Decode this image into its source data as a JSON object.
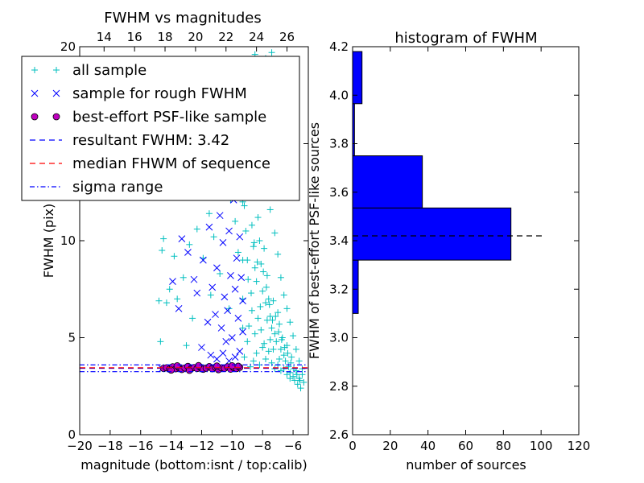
{
  "chart_data": [
    {
      "id": "scatter",
      "type": "scatter",
      "title": "FWHM vs magnitudes",
      "xlabel": "magnitude (bottom:isnt / top:calib)",
      "ylabel": "FWHM (pix)",
      "xlim": [
        -20,
        -5
      ],
      "ylim": [
        0,
        20
      ],
      "x_ticks": [
        -20,
        -18,
        -16,
        -14,
        -12,
        -10,
        -8,
        -6
      ],
      "x_tick_labels": [
        "−20",
        "−18",
        "−16",
        "−14",
        "−12",
        "−10",
        "−8",
        "−6"
      ],
      "y_ticks": [
        0,
        5,
        10,
        15,
        20
      ],
      "y_tick_labels": [
        "0",
        "5",
        "10",
        "15",
        "20"
      ],
      "top_ticks": [
        14,
        16,
        18,
        20,
        22,
        24,
        26
      ],
      "top_tick_labels": [
        "14",
        "16",
        "18",
        "20",
        "22",
        "24",
        "26"
      ],
      "top_offset": 32.4,
      "grid": false,
      "legend_placement": "upper-left",
      "series": [
        {
          "name": "all sample",
          "marker": "+",
          "color": "#00bfbf",
          "points": [
            [
              -14.6,
              9.5
            ],
            [
              -14.5,
              10.1
            ],
            [
              -14.3,
              6.8
            ],
            [
              -14.1,
              7.5
            ],
            [
              -13.8,
              9.2
            ],
            [
              -13.6,
              7.0
            ],
            [
              -13.2,
              8.1
            ],
            [
              -12.8,
              9.8
            ],
            [
              -12.3,
              10.6
            ],
            [
              -12.6,
              6.0
            ],
            [
              -13.0,
              4.6
            ],
            [
              -14.7,
              4.8
            ],
            [
              -14.8,
              6.9
            ],
            [
              -11.9,
              9.1
            ],
            [
              -11.5,
              11.4
            ],
            [
              -11.2,
              10.2
            ],
            [
              -11.7,
              12.6
            ],
            [
              -10.9,
              14.3
            ],
            [
              -10.6,
              13.2
            ],
            [
              -10.3,
              15.4
            ],
            [
              -10.1,
              12.1
            ],
            [
              -10.8,
              8.3
            ],
            [
              -11.4,
              7.2
            ],
            [
              -10.2,
              6.5
            ],
            [
              -9.9,
              16.4
            ],
            [
              -9.7,
              17.0
            ],
            [
              -9.5,
              15.8
            ],
            [
              -9.8,
              11.0
            ],
            [
              -9.6,
              9.4
            ],
            [
              -9.4,
              13.0
            ],
            [
              -9.2,
              11.8
            ],
            [
              -9.1,
              10.5
            ],
            [
              -9.0,
              9.0
            ],
            [
              -8.9,
              12.4
            ],
            [
              -8.8,
              14.6
            ],
            [
              -8.7,
              10.8
            ],
            [
              -8.6,
              9.7
            ],
            [
              -8.5,
              8.6
            ],
            [
              -8.4,
              7.9
            ],
            [
              -8.3,
              11.2
            ],
            [
              -8.2,
              10.0
            ],
            [
              -8.1,
              8.8
            ],
            [
              -8.0,
              7.4
            ],
            [
              -7.9,
              9.6
            ],
            [
              -7.8,
              6.8
            ],
            [
              -7.7,
              8.2
            ],
            [
              -7.6,
              7.0
            ],
            [
              -7.5,
              6.1
            ],
            [
              -7.4,
              5.5
            ],
            [
              -7.3,
              6.9
            ],
            [
              -7.2,
              5.2
            ],
            [
              -7.1,
              4.8
            ],
            [
              -7.0,
              6.3
            ],
            [
              -6.9,
              5.7
            ],
            [
              -6.8,
              4.4
            ],
            [
              -6.7,
              5.0
            ],
            [
              -6.6,
              4.1
            ],
            [
              -6.5,
              3.8
            ],
            [
              -6.4,
              4.6
            ],
            [
              -6.3,
              3.5
            ],
            [
              -6.2,
              3.2
            ],
            [
              -6.1,
              4.0
            ],
            [
              -6.0,
              3.0
            ],
            [
              -5.9,
              2.8
            ],
            [
              -5.8,
              3.3
            ],
            [
              -5.7,
              2.6
            ],
            [
              -5.6,
              2.9
            ],
            [
              -5.5,
              2.4
            ],
            [
              -5.4,
              3.1
            ],
            [
              -5.3,
              2.7
            ],
            [
              -8.8,
              3.5
            ],
            [
              -8.6,
              3.8
            ],
            [
              -8.4,
              4.2
            ],
            [
              -8.2,
              3.6
            ],
            [
              -8.0,
              4.5
            ],
            [
              -7.8,
              3.9
            ],
            [
              -7.6,
              4.3
            ],
            [
              -7.4,
              3.7
            ],
            [
              -7.2,
              3.4
            ],
            [
              -7.0,
              3.6
            ],
            [
              -6.8,
              3.3
            ],
            [
              -9.2,
              4.0
            ],
            [
              -9.0,
              4.8
            ],
            [
              -8.9,
              5.6
            ],
            [
              -8.7,
              6.4
            ],
            [
              -8.5,
              5.2
            ],
            [
              -8.3,
              6.0
            ],
            [
              -8.1,
              5.4
            ],
            [
              -7.9,
              4.7
            ],
            [
              -7.7,
              5.9
            ],
            [
              -7.5,
              4.9
            ],
            [
              -7.3,
              4.4
            ],
            [
              -6.9,
              3.9
            ],
            [
              -6.6,
              3.4
            ],
            [
              -6.4,
              3.1
            ],
            [
              -6.2,
              2.9
            ],
            [
              -8.5,
              19.6
            ],
            [
              -7.8,
              19.4
            ],
            [
              -7.4,
              19.7
            ],
            [
              -9.3,
              18.2
            ],
            [
              -9.0,
              17.5
            ],
            [
              -8.9,
              16.8
            ],
            [
              -8.6,
              15.9
            ],
            [
              -8.3,
              15.1
            ],
            [
              -8.0,
              13.8
            ],
            [
              -7.7,
              12.9
            ],
            [
              -7.5,
              11.6
            ],
            [
              -7.2,
              10.4
            ],
            [
              -7.0,
              9.3
            ],
            [
              -6.8,
              8.1
            ],
            [
              -6.6,
              7.2
            ],
            [
              -6.4,
              6.5
            ],
            [
              -6.2,
              5.8
            ],
            [
              -6.0,
              5.1
            ],
            [
              -5.8,
              4.4
            ],
            [
              -5.6,
              3.8
            ],
            [
              -5.4,
              3.4
            ],
            [
              -8.95,
              8.0
            ],
            [
              -8.75,
              7.3
            ],
            [
              -8.55,
              9.9
            ],
            [
              -8.35,
              8.9
            ],
            [
              -8.15,
              6.6
            ],
            [
              -7.95,
              8.4
            ],
            [
              -7.75,
              7.6
            ],
            [
              -7.55,
              6.7
            ],
            [
              -7.35,
              5.9
            ],
            [
              -7.15,
              6.1
            ],
            [
              -6.95,
              5.3
            ],
            [
              -6.75,
              4.9
            ],
            [
              -6.55,
              4.5
            ],
            [
              -6.35,
              4.2
            ],
            [
              -6.15,
              3.7
            ],
            [
              -5.95,
              3.4
            ],
            [
              -5.75,
              3.1
            ],
            [
              -5.55,
              2.8
            ],
            [
              -9.3,
              7.0
            ],
            [
              -9.3,
              5.5
            ],
            [
              -9.3,
              9.0
            ],
            [
              -9.3,
              12.0
            ],
            [
              -9.3,
              14.0
            ]
          ]
        },
        {
          "name": "sample for rough FWHM",
          "marker": "x",
          "color": "#0000ff",
          "points": [
            [
              -14.6,
              3.4
            ],
            [
              -13.9,
              7.9
            ],
            [
              -13.5,
              6.5
            ],
            [
              -13.3,
              10.1
            ],
            [
              -12.9,
              9.4
            ],
            [
              -12.5,
              8.0
            ],
            [
              -12.1,
              14.6
            ],
            [
              -11.9,
              9.0
            ],
            [
              -11.7,
              12.5
            ],
            [
              -11.5,
              10.7
            ],
            [
              -11.3,
              7.6
            ],
            [
              -11.1,
              6.2
            ],
            [
              -11.0,
              8.6
            ],
            [
              -10.8,
              11.3
            ],
            [
              -10.7,
              5.5
            ],
            [
              -10.6,
              9.9
            ],
            [
              -10.5,
              7.1
            ],
            [
              -10.4,
              4.8
            ],
            [
              -10.3,
              6.4
            ],
            [
              -10.2,
              10.5
            ],
            [
              -10.1,
              8.2
            ],
            [
              -10.0,
              5.0
            ],
            [
              -9.9,
              12.1
            ],
            [
              -9.8,
              7.5
            ],
            [
              -9.7,
              9.1
            ],
            [
              -9.6,
              6.0
            ],
            [
              -9.5,
              4.3
            ],
            [
              -9.5,
              10.2
            ],
            [
              -9.4,
              8.1
            ],
            [
              -9.4,
              13.5
            ],
            [
              -9.3,
              6.9
            ],
            [
              -9.3,
              5.3
            ],
            [
              -11.4,
              4.1
            ],
            [
              -11.0,
              3.9
            ],
            [
              -10.6,
              4.2
            ],
            [
              -10.2,
              3.8
            ],
            [
              -9.8,
              4.0
            ],
            [
              -12.0,
              4.5
            ],
            [
              -11.6,
              5.8
            ],
            [
              -12.3,
              7.3
            ],
            [
              -10.9,
              13.2
            ],
            [
              -10.4,
              14.1
            ],
            [
              -10.0,
              13.0
            ],
            [
              -9.7,
              15.6
            ],
            [
              -9.5,
              16.5
            ],
            [
              -11.2,
              15.3
            ],
            [
              -10.8,
              16.2
            ]
          ]
        },
        {
          "name": "best-effort PSF-like sample",
          "marker": "o",
          "color": "#bf00bf",
          "points": [
            [
              -14.5,
              3.42
            ],
            [
              -14.3,
              3.45
            ],
            [
              -14.1,
              3.38
            ],
            [
              -13.9,
              3.5
            ],
            [
              -13.7,
              3.4
            ],
            [
              -13.5,
              3.47
            ],
            [
              -13.3,
              3.36
            ],
            [
              -13.1,
              3.44
            ],
            [
              -12.9,
              3.52
            ],
            [
              -12.7,
              3.39
            ],
            [
              -12.5,
              3.46
            ],
            [
              -12.3,
              3.41
            ],
            [
              -12.1,
              3.49
            ],
            [
              -11.9,
              3.37
            ],
            [
              -11.7,
              3.43
            ],
            [
              -11.5,
              3.51
            ],
            [
              -11.3,
              3.4
            ],
            [
              -11.1,
              3.48
            ],
            [
              -10.9,
              3.35
            ],
            [
              -10.7,
              3.45
            ],
            [
              -10.5,
              3.42
            ],
            [
              -10.3,
              3.5
            ],
            [
              -10.1,
              3.38
            ],
            [
              -9.9,
              3.46
            ],
            [
              -9.7,
              3.41
            ],
            [
              -9.5,
              3.47
            ],
            [
              -13.6,
              3.55
            ],
            [
              -12.2,
              3.56
            ],
            [
              -11.0,
              3.54
            ],
            [
              -10.0,
              3.55
            ],
            [
              -9.6,
              3.53
            ],
            [
              -14.0,
              3.33
            ],
            [
              -12.8,
              3.32
            ]
          ]
        }
      ],
      "lines": [
        {
          "name": "resultant FWHM: 3.42",
          "y": 3.42,
          "color": "#0000ff",
          "style": "dashed"
        },
        {
          "name": "median FHWM of sequence",
          "y": 3.45,
          "color": "#ff0000",
          "style": "dashed"
        },
        {
          "name": "sigma range",
          "y": [
            3.25,
            3.6
          ],
          "color": "#0000ff",
          "style": "dashdot"
        }
      ]
    },
    {
      "id": "histogram",
      "type": "bar",
      "orientation": "horizontal",
      "title": "histogram of FWHM",
      "xlabel": "number of sources",
      "ylabel": "FWHM of best-effort PSF-like sources",
      "xlim": [
        0,
        120
      ],
      "ylim": [
        2.6,
        4.2
      ],
      "x_ticks": [
        0,
        20,
        40,
        60,
        80,
        100,
        120
      ],
      "x_tick_labels": [
        "0",
        "20",
        "40",
        "60",
        "80",
        "100",
        "120"
      ],
      "y_ticks": [
        2.6,
        2.8,
        3.0,
        3.2,
        3.4,
        3.6,
        3.8,
        4.0,
        4.2
      ],
      "y_tick_labels": [
        "2.6",
        "2.8",
        "3.0",
        "3.2",
        "3.4",
        "3.6",
        "3.8",
        "4.0",
        "4.2"
      ],
      "color": "#0000ff",
      "bins": [
        [
          3.1,
          3.32,
          3
        ],
        [
          3.32,
          3.535,
          84
        ],
        [
          3.535,
          3.75,
          37
        ],
        [
          3.75,
          3.965,
          1
        ],
        [
          3.965,
          4.18,
          5
        ]
      ],
      "reference_line": {
        "y": 3.42,
        "x": [
          0,
          102
        ],
        "color": "#000000",
        "style": "dashed"
      }
    }
  ]
}
